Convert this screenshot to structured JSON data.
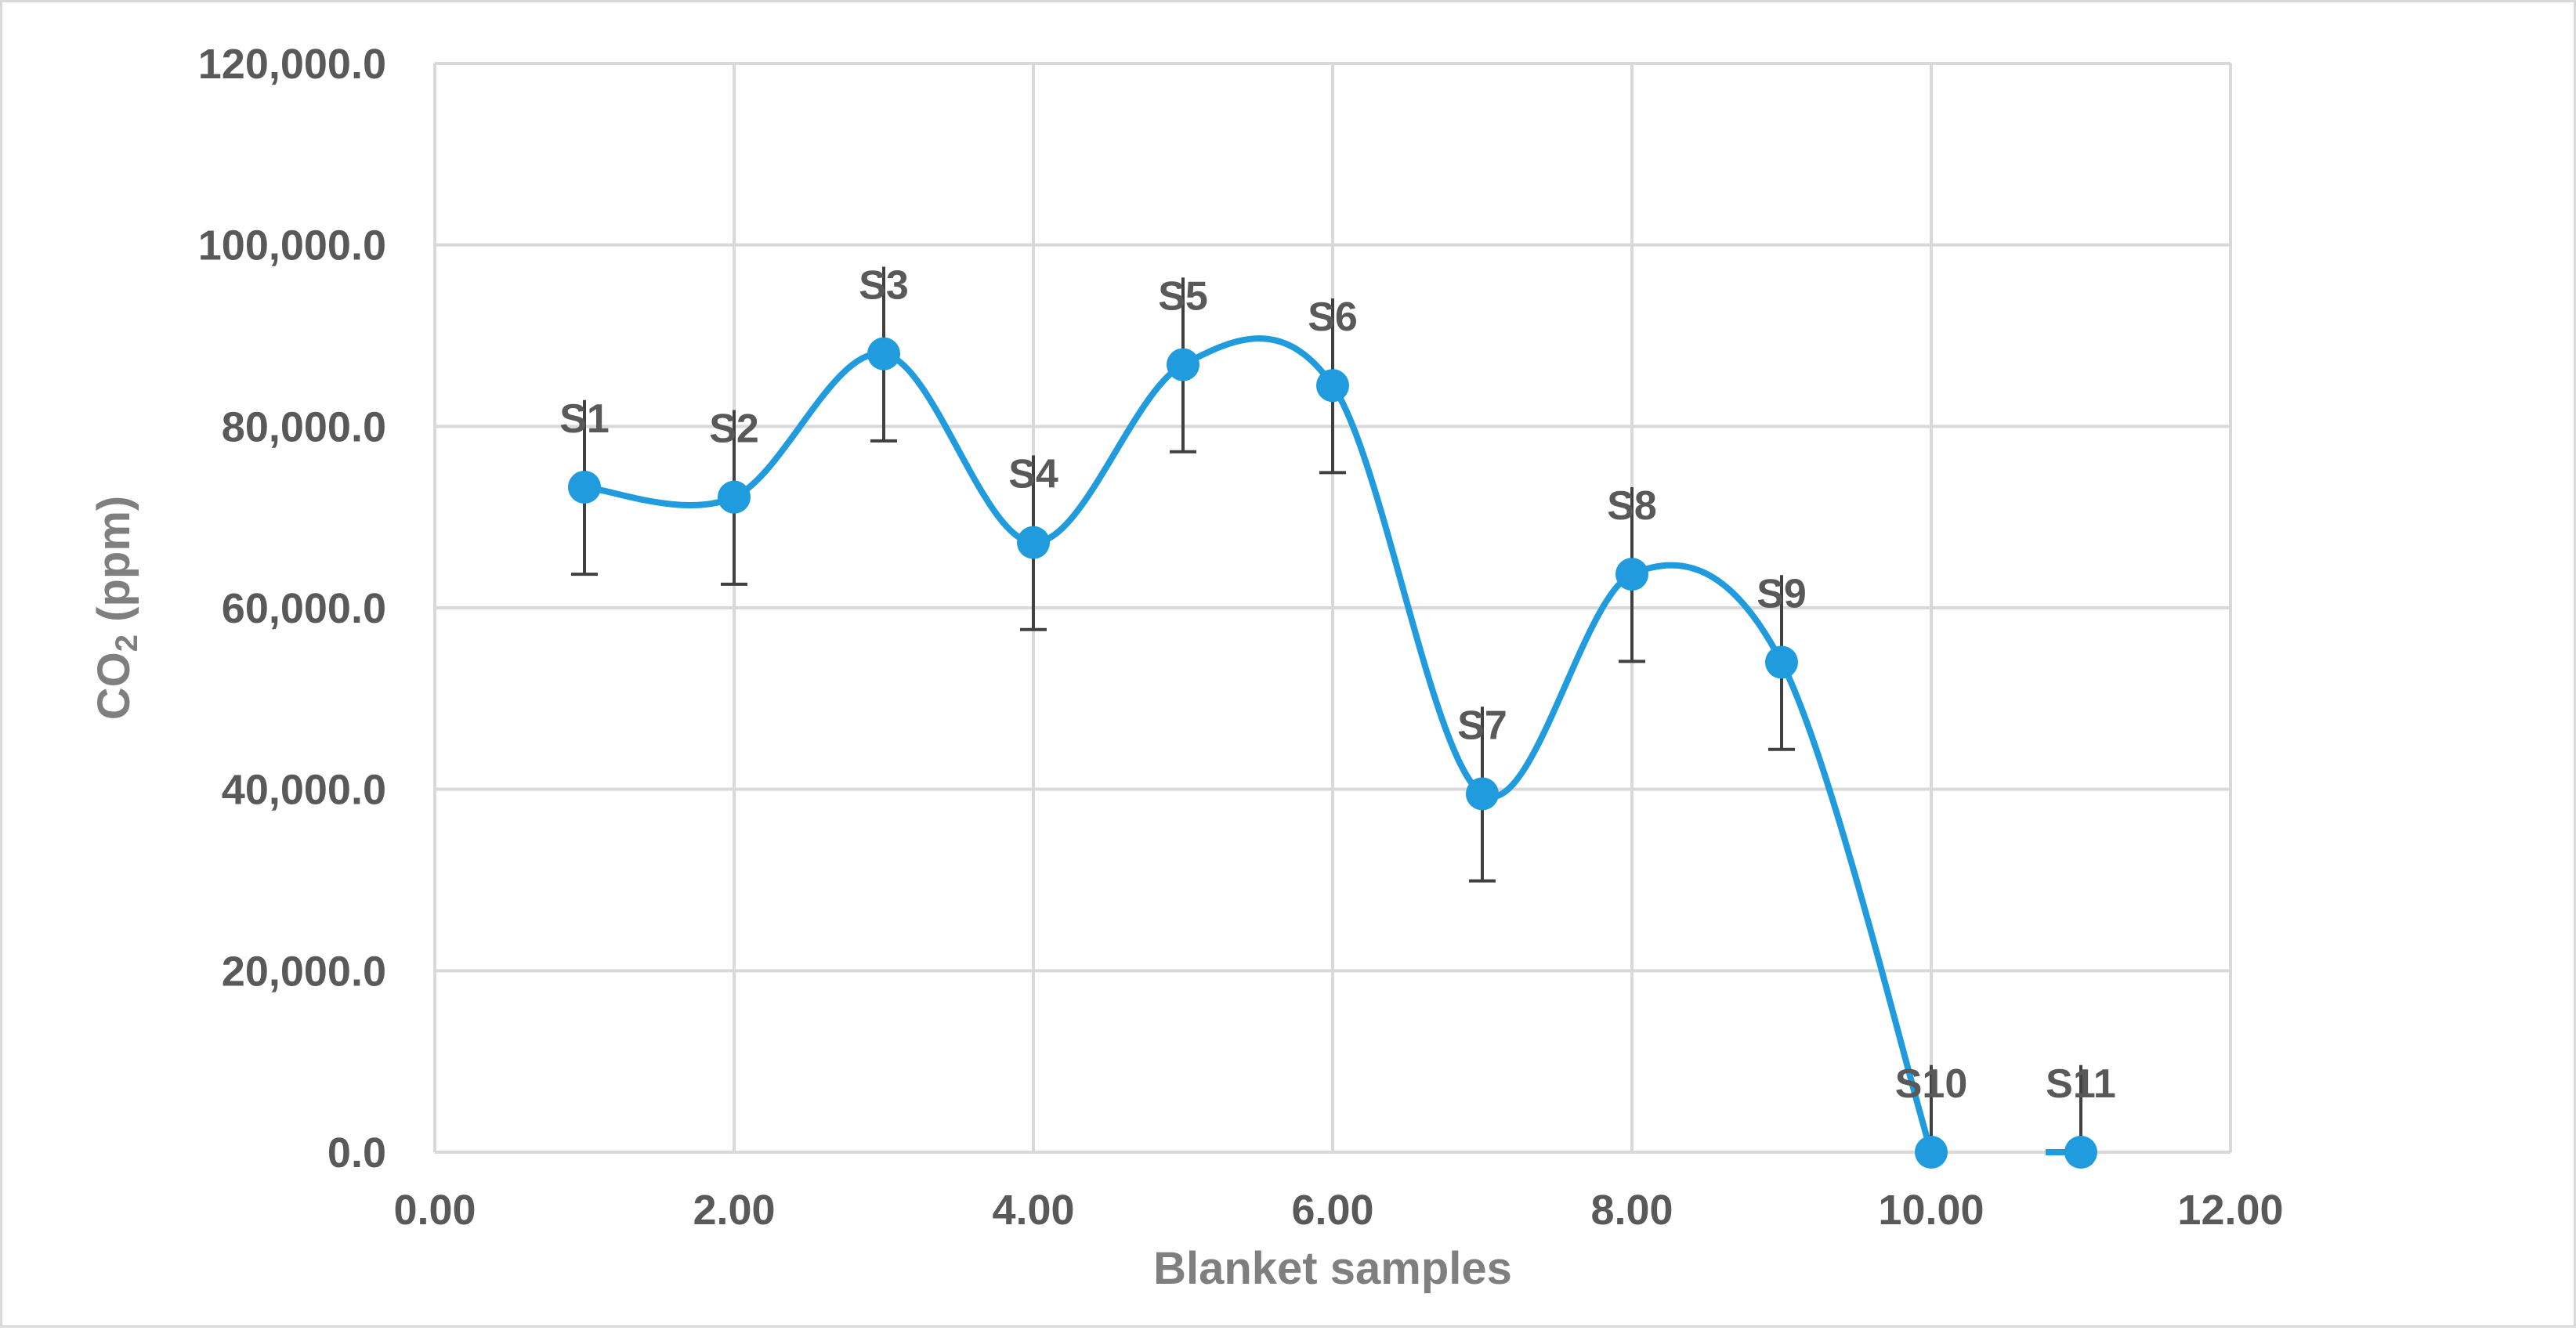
{
  "chart_data": {
    "type": "scatter",
    "title": "",
    "xlabel": "Blanket samples",
    "ylabel": {
      "prefix": "CO",
      "subscript": "2",
      "suffix": " (ppm)"
    },
    "xlim": [
      0,
      12
    ],
    "ylim": [
      0,
      120000
    ],
    "x_ticks": [
      "0.00",
      "2.00",
      "4.00",
      "6.00",
      "8.00",
      "10.00",
      "12.00"
    ],
    "y_ticks": [
      "0.0",
      "20,000.0",
      "40,000.0",
      "60,000.0",
      "80,000.0",
      "100,000.0",
      "120,000.0"
    ],
    "grid": true,
    "smooth_line": true,
    "series_color": "#1f9bde",
    "error_bar_color": "#404040",
    "error": 9600,
    "points": [
      {
        "label": "S1",
        "x": 1,
        "y": 73300
      },
      {
        "label": "S2",
        "x": 2,
        "y": 72200
      },
      {
        "label": "S3",
        "x": 3,
        "y": 88000
      },
      {
        "label": "S4",
        "x": 4,
        "y": 67200
      },
      {
        "label": "S5",
        "x": 5,
        "y": 86800
      },
      {
        "label": "S6",
        "x": 6,
        "y": 84500
      },
      {
        "label": "S7",
        "x": 7,
        "y": 39500
      },
      {
        "label": "S8",
        "x": 8,
        "y": 63700
      },
      {
        "label": "S9",
        "x": 9,
        "y": 54000
      },
      {
        "label": "S10",
        "x": 10,
        "y": 0
      },
      {
        "label": "S11",
        "x": 11,
        "y": 0
      }
    ]
  }
}
